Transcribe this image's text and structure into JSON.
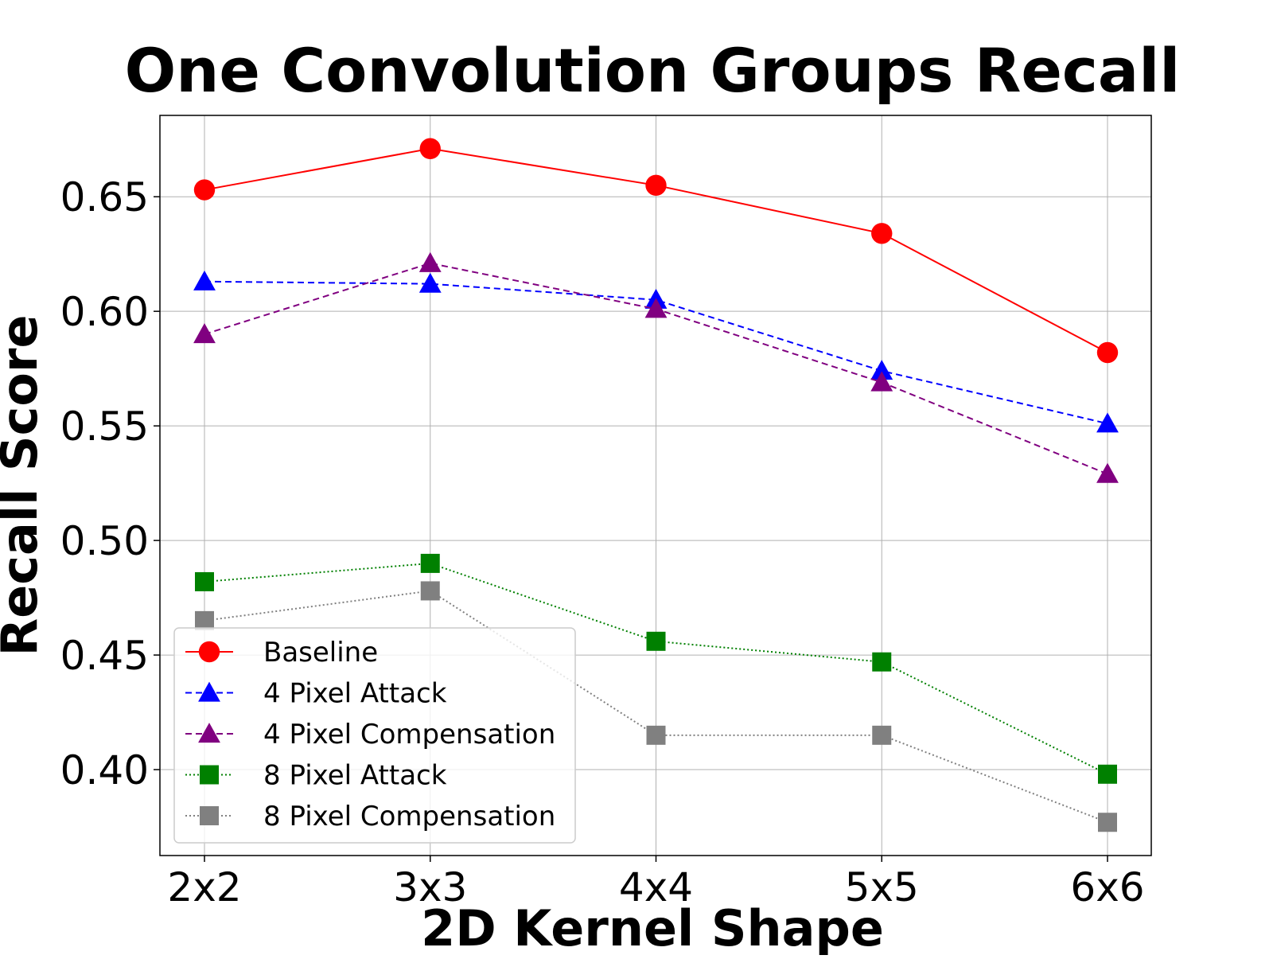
{
  "chart_data": {
    "type": "line",
    "title": "One Convolution Groups Recall",
    "xlabel": "2D Kernel Shape",
    "ylabel": "Recall Score",
    "categories": [
      "2x2",
      "3x3",
      "4x4",
      "5x5",
      "6x6"
    ],
    "ylim": [
      0.3625,
      0.6855
    ],
    "yticks": [
      0.4,
      0.45,
      0.5,
      0.55,
      0.6,
      0.65
    ],
    "ytick_labels": [
      "0.40",
      "0.45",
      "0.50",
      "0.55",
      "0.60",
      "0.65"
    ],
    "grid": true,
    "legend_position": "bottom-left",
    "series": [
      {
        "name": "Baseline",
        "values": [
          0.653,
          0.671,
          0.655,
          0.634,
          0.582
        ],
        "color": "#ff0000",
        "marker": "circle",
        "line_style": "solid"
      },
      {
        "name": "4 Pixel Attack",
        "values": [
          0.613,
          0.612,
          0.605,
          0.574,
          0.551
        ],
        "color": "#0000ff",
        "marker": "triangle",
        "line_style": "dashed"
      },
      {
        "name": "4 Pixel Compensation",
        "values": [
          0.59,
          0.621,
          0.601,
          0.569,
          0.529
        ],
        "color": "#800080",
        "marker": "triangle",
        "line_style": "dashed"
      },
      {
        "name": "8 Pixel Attack",
        "values": [
          0.482,
          0.49,
          0.456,
          0.447,
          0.398
        ],
        "color": "#008000",
        "marker": "square",
        "line_style": "dotted"
      },
      {
        "name": "8 Pixel Compensation",
        "values": [
          0.465,
          0.478,
          0.415,
          0.415,
          0.377
        ],
        "color": "#808080",
        "marker": "square",
        "line_style": "dotted"
      }
    ]
  }
}
